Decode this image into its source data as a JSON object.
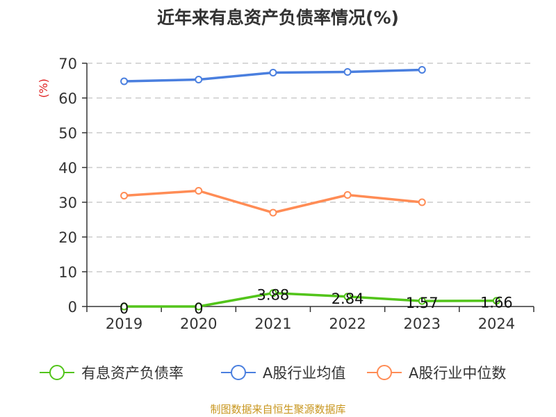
{
  "chart_data": {
    "type": "line",
    "title": "近年来有息资产负债率情况(%)",
    "ylabel": "(%)",
    "xlabel": "",
    "categories": [
      "2019",
      "2020",
      "2021",
      "2022",
      "2023",
      "2024"
    ],
    "ylim": [
      0,
      70
    ],
    "yticks": [
      0,
      10,
      20,
      30,
      40,
      50,
      60,
      70
    ],
    "grid": true,
    "legend_position": "bottom",
    "series": [
      {
        "name": "有息资产负债率",
        "color": "#52c41a",
        "values": [
          0,
          0,
          3.88,
          2.84,
          1.57,
          1.66
        ],
        "labels": [
          "0",
          "0",
          "3.88",
          "2.84",
          "1.57",
          "1.66"
        ]
      },
      {
        "name": "A股行业均值",
        "color": "#4a7fdf",
        "values": [
          64.8,
          65.3,
          67.3,
          67.5,
          68.1,
          null
        ]
      },
      {
        "name": "A股行业中位数",
        "color": "#ff8c55",
        "values": [
          31.9,
          33.3,
          27.0,
          32.1,
          30.0,
          null
        ]
      }
    ]
  },
  "source": "制图数据来自恒生聚源数据库",
  "colors": {
    "ylabel": "#e02020",
    "axis": "#333333",
    "grid": "#cccccc"
  }
}
